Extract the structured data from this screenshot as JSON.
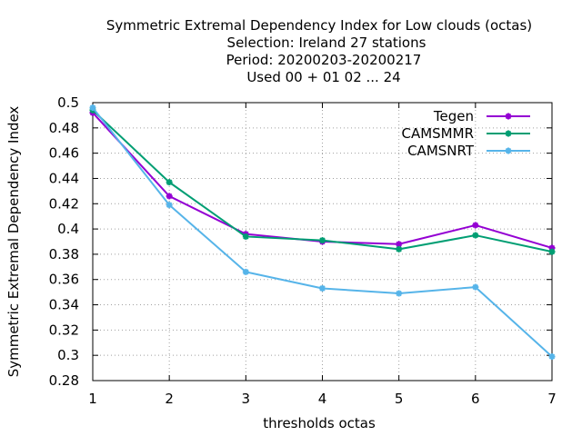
{
  "chart_data": {
    "type": "line",
    "title_lines": [
      "Symmetric Extremal Dependency Index  for Low clouds (octas)",
      "Selection: Ireland     27 stations",
      "Period: 20200203-20200217",
      "Used  00 + 01 02 ... 24"
    ],
    "xlabel": "thresholds octas",
    "ylabel": "Symmetric Extremal Dependency Index",
    "x": [
      1,
      2,
      3,
      4,
      5,
      6,
      7
    ],
    "xlim": [
      1,
      7
    ],
    "ylim": [
      0.28,
      0.5
    ],
    "xticks": [
      "1",
      "2",
      "3",
      "4",
      "5",
      "6",
      "7"
    ],
    "yticks": [
      "0.28",
      "0.3",
      "0.32",
      "0.34",
      "0.36",
      "0.38",
      "0.4",
      "0.42",
      "0.44",
      "0.46",
      "0.48",
      "0.5"
    ],
    "grid": true,
    "legend_position": "top-right",
    "series": [
      {
        "name": "Tegen",
        "color": "#9400d3",
        "values": [
          0.492,
          0.426,
          0.396,
          0.39,
          0.388,
          0.403,
          0.385
        ]
      },
      {
        "name": "CAMSMMR",
        "color": "#009e73",
        "values": [
          0.494,
          0.437,
          0.394,
          0.391,
          0.384,
          0.395,
          0.382
        ]
      },
      {
        "name": "CAMSNRT",
        "color": "#56b4e9",
        "values": [
          0.496,
          0.419,
          0.366,
          0.353,
          0.349,
          0.354,
          0.299
        ]
      }
    ]
  }
}
